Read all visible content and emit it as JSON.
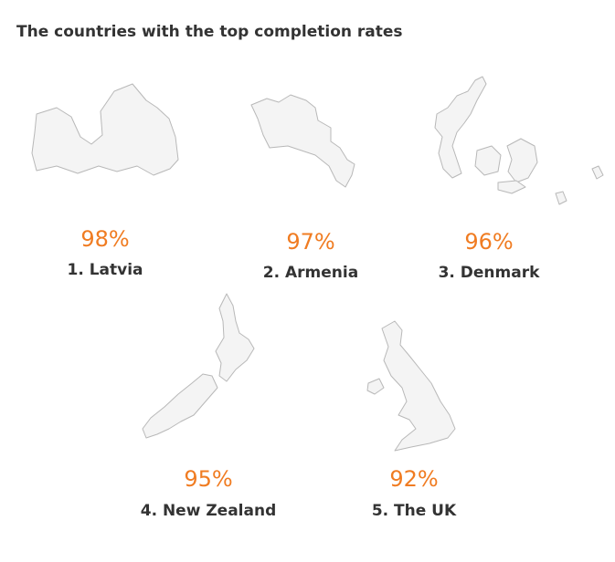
{
  "title": "The countries with the top completion rates",
  "countries": [
    {
      "percent": "98%",
      "label": "1. Latvia"
    },
    {
      "percent": "97%",
      "label": "2. Armenia"
    },
    {
      "percent": "96%",
      "label": "3. Denmark"
    },
    {
      "percent": "95%",
      "label": "4. New Zealand"
    },
    {
      "percent": "92%",
      "label": "5. The UK"
    }
  ]
}
